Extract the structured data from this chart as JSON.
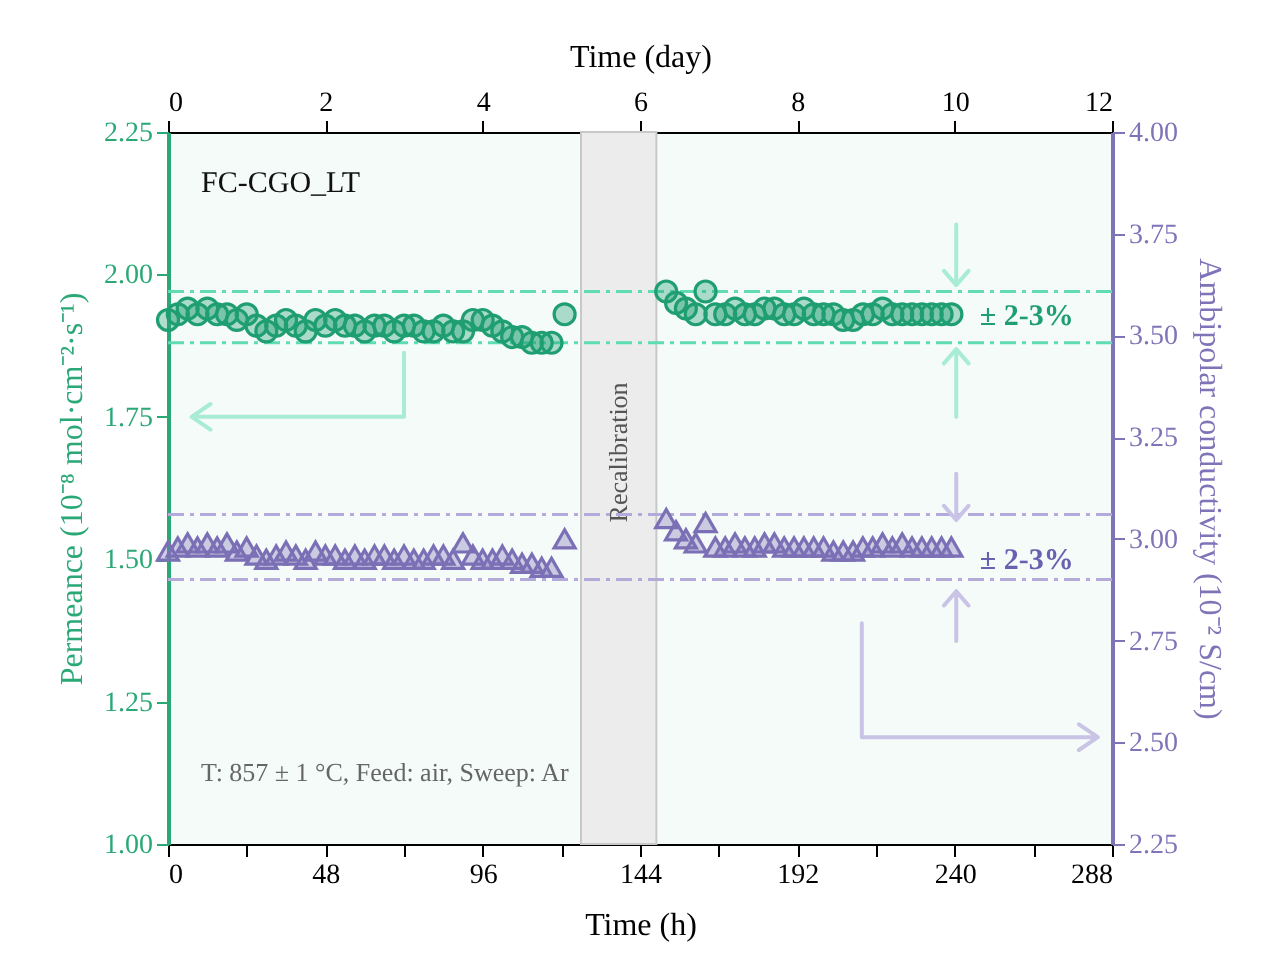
{
  "chart_data": {
    "type": "scatter",
    "xlabel": "Time (h)",
    "x2label": "Time (day)",
    "ylabel": "Permeance (10⁻⁸ mol·cm⁻²·s⁻¹)",
    "y2label": "Ambipolar conductivity (10⁻² S/cm)",
    "xlim": [
      0,
      288
    ],
    "xticks": [
      0,
      {
        "value": 24,
        "label": null
      },
      48,
      {
        "value": 72,
        "label": null
      },
      96,
      {
        "value": 120,
        "label": null
      },
      144,
      {
        "value": 168,
        "label": null
      },
      192,
      {
        "value": 216,
        "label": null
      },
      240,
      {
        "value": 264,
        "label": null
      },
      288
    ],
    "x2lim": [
      0,
      12
    ],
    "x2ticks": [
      0,
      2,
      4,
      6,
      8,
      10,
      12
    ],
    "ylim": [
      1.0,
      2.25
    ],
    "yticks": [
      {
        "value": 1.0,
        "label": "1.00"
      },
      {
        "value": 1.25,
        "label": "1.25"
      },
      {
        "value": 1.5,
        "label": "1.50"
      },
      {
        "value": 1.75,
        "label": "1.75"
      },
      {
        "value": 2.0,
        "label": "2.00"
      },
      {
        "value": 2.25,
        "label": "2.25"
      }
    ],
    "y2lim": [
      2.25,
      4.0
    ],
    "y2ticks": [
      {
        "value": 2.25,
        "label": "2.25"
      },
      {
        "value": 2.5,
        "label": "2.50"
      },
      {
        "value": 2.75,
        "label": "2.75"
      },
      {
        "value": 3.0,
        "label": "3.00"
      },
      {
        "value": 3.25,
        "label": "3.25"
      },
      {
        "value": 3.5,
        "label": "3.50"
      },
      {
        "value": 3.75,
        "label": "3.75"
      },
      {
        "value": 4.0,
        "label": "4.00"
      }
    ],
    "x": [
      0,
      3,
      6,
      9,
      12,
      15,
      18,
      21,
      24,
      27,
      30,
      33,
      36,
      39,
      42,
      45,
      48,
      51,
      54,
      57,
      60,
      63,
      66,
      69,
      72,
      75,
      78,
      81,
      84,
      87,
      90,
      93,
      96,
      99,
      102,
      105,
      108,
      111,
      114,
      117,
      121,
      152,
      155,
      158,
      161,
      164,
      167,
      170,
      173,
      176,
      179,
      182,
      185,
      188,
      191,
      194,
      197,
      200,
      203,
      206,
      209,
      212,
      215,
      218,
      221,
      224,
      227,
      230,
      233,
      236,
      239
    ],
    "series": [
      {
        "color": "#1f9e72",
        "marker": "circle",
        "values": [
          1.92,
          1.93,
          1.94,
          1.93,
          1.94,
          1.93,
          1.93,
          1.92,
          1.93,
          1.91,
          1.9,
          1.91,
          1.92,
          1.91,
          1.9,
          1.92,
          1.91,
          1.92,
          1.91,
          1.91,
          1.9,
          1.91,
          1.91,
          1.9,
          1.91,
          1.91,
          1.9,
          1.9,
          1.91,
          1.9,
          1.9,
          1.92,
          1.92,
          1.91,
          1.9,
          1.89,
          1.89,
          1.88,
          1.88,
          1.88,
          1.93,
          1.97,
          1.95,
          1.94,
          1.93,
          1.97,
          1.93,
          1.93,
          1.94,
          1.93,
          1.93,
          1.94,
          1.94,
          1.93,
          1.93,
          1.94,
          1.93,
          1.93,
          1.93,
          1.92,
          1.92,
          1.93,
          1.93,
          1.94,
          1.93,
          1.93,
          1.93,
          1.93,
          1.93,
          1.93,
          1.93
        ]
      },
      {
        "color": "#7b6fb5",
        "marker": "triangle",
        "axis": "y2",
        "values": [
          2.97,
          2.98,
          2.99,
          2.98,
          2.99,
          2.98,
          2.99,
          2.97,
          2.98,
          2.96,
          2.95,
          2.96,
          2.97,
          2.96,
          2.95,
          2.97,
          2.96,
          2.96,
          2.95,
          2.96,
          2.95,
          2.96,
          2.96,
          2.95,
          2.96,
          2.95,
          2.95,
          2.96,
          2.96,
          2.95,
          2.99,
          2.96,
          2.95,
          2.95,
          2.96,
          2.95,
          2.94,
          2.94,
          2.93,
          2.93,
          3.0,
          3.05,
          3.02,
          3.0,
          2.99,
          3.04,
          2.98,
          2.98,
          2.99,
          2.98,
          2.98,
          2.99,
          2.99,
          2.98,
          2.98,
          2.98,
          2.98,
          2.98,
          2.97,
          2.97,
          2.97,
          2.98,
          2.98,
          2.99,
          2.98,
          2.99,
          2.98,
          2.98,
          2.98,
          2.98,
          2.98
        ]
      }
    ],
    "ref_lines": [
      {
        "axis": "y",
        "value": 1.97,
        "color": "#5fdcb4",
        "line_style": "dashed"
      },
      {
        "axis": "y",
        "value": 1.88,
        "color": "#5fdcb4",
        "line_style": "dashed"
      },
      {
        "axis": "y2",
        "value": 3.06,
        "color": "#b3aadb",
        "line_style": "dashed"
      },
      {
        "axis": "y2",
        "value": 2.9,
        "color": "#b3aadb",
        "line_style": "dashed"
      }
    ],
    "bands": [
      {
        "axis": "x",
        "from": 126,
        "to": 149,
        "label": "Recalibration",
        "color": "#ececec"
      }
    ],
    "annotations": [
      "FC-CGO_LT",
      "± 2-3%",
      "± 2-3%",
      "T: 857 ± 1 °C, Feed: air, Sweep: Ar"
    ],
    "grid": false
  }
}
